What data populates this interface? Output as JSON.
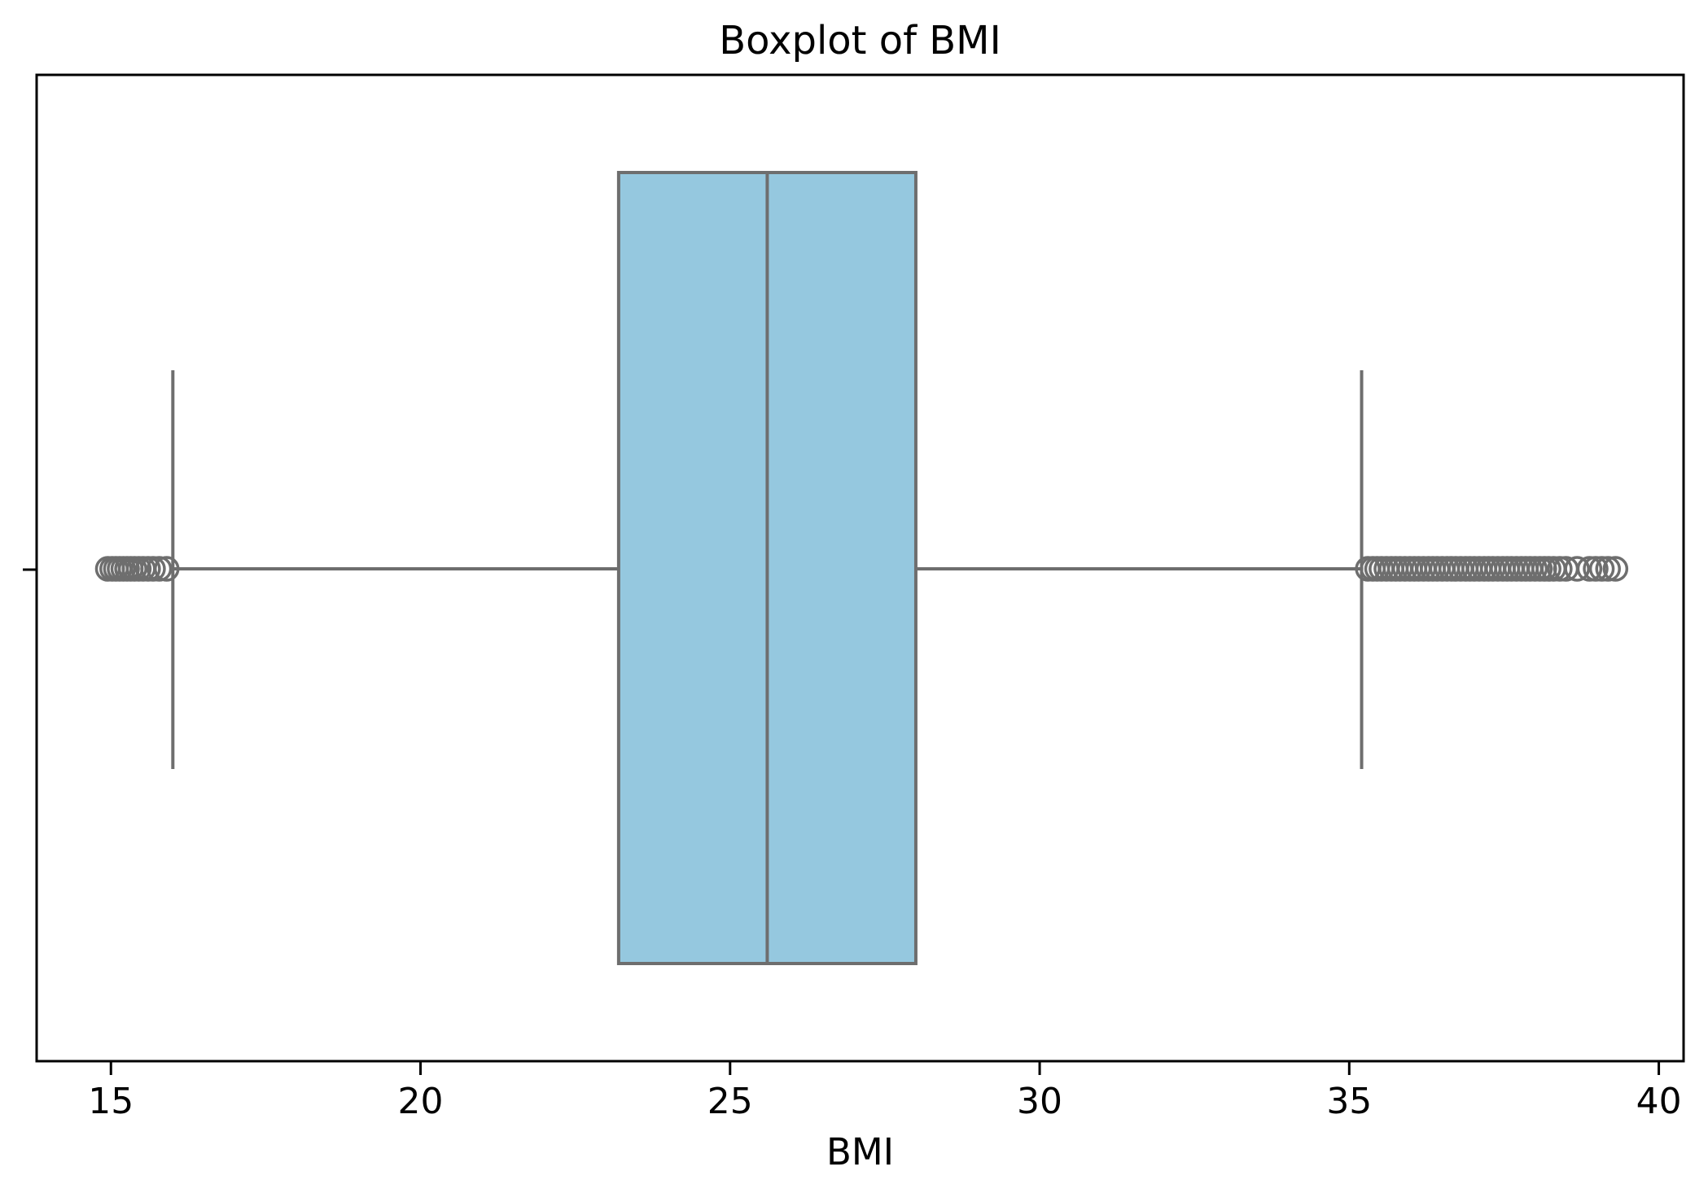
{
  "chart_data": {
    "type": "boxplot",
    "orientation": "horizontal",
    "title": "Boxplot of BMI",
    "xlabel": "BMI",
    "ylabel": "",
    "grid": false,
    "legend": null,
    "xlim": [
      13.8,
      40.4
    ],
    "xticks": [
      15,
      20,
      25,
      30,
      35,
      40
    ],
    "yticks": [
      ""
    ],
    "series": [
      {
        "name": "BMI",
        "whisker_low": 16.0,
        "q1": 23.2,
        "median": 25.6,
        "q3": 28.0,
        "whisker_high": 35.2,
        "outliers_low": [
          14.95,
          15.02,
          15.08,
          15.14,
          15.2,
          15.26,
          15.32,
          15.38,
          15.45,
          15.52,
          15.6,
          15.68,
          15.78,
          15.9
        ],
        "outliers_high": [
          35.3,
          35.38,
          35.45,
          35.52,
          35.6,
          35.68,
          35.75,
          35.82,
          35.9,
          35.98,
          36.05,
          36.12,
          36.2,
          36.28,
          36.35,
          36.42,
          36.5,
          36.58,
          36.65,
          36.72,
          36.8,
          36.88,
          36.95,
          37.02,
          37.1,
          37.18,
          37.25,
          37.32,
          37.4,
          37.48,
          37.55,
          37.62,
          37.7,
          37.78,
          37.85,
          37.92,
          38.0,
          38.08,
          38.15,
          38.22,
          38.3,
          38.4,
          38.5,
          38.68,
          38.88,
          38.98,
          39.08,
          39.18,
          39.3
        ]
      }
    ],
    "colors": {
      "box_fill": "#95C8DF",
      "box_edge": "#6E6E6E",
      "whisker": "#6E6E6E",
      "flier_edge": "#6E6E6E",
      "axis": "#000000",
      "text": "#000000"
    }
  }
}
